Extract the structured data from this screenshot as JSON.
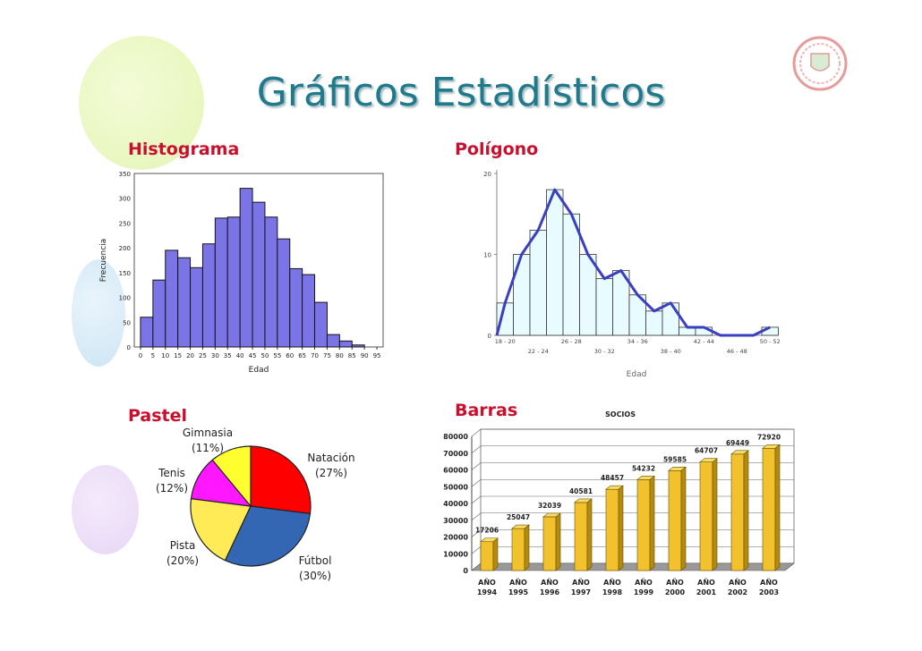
{
  "page": {
    "title": "Gráficos Estadísticos"
  },
  "sections": {
    "histogram": "Histograma",
    "polygon": "Polígono",
    "pie": "Pastel",
    "bars": "Barras"
  },
  "colors": {
    "title": "#1f7a8c",
    "section": "#c8102e",
    "hist_bar": "#7b74e6",
    "poly_line": "#3a3fc0",
    "poly_bar": "#e8fbff",
    "bar_gold": "#f2c12e"
  },
  "chart_data": [
    {
      "type": "bar",
      "ylabel": "Frecuencia",
      "xlabel": "Edad",
      "ylim": [
        0,
        350
      ],
      "yticks": [
        0,
        50,
        100,
        150,
        200,
        250,
        300,
        350
      ],
      "xticks": [
        0,
        5,
        10,
        15,
        20,
        25,
        30,
        35,
        40,
        45,
        50,
        55,
        60,
        65,
        70,
        75,
        80,
        85,
        90,
        95
      ],
      "bins_start": [
        0,
        5,
        10,
        15,
        20,
        25,
        30,
        35,
        40,
        45,
        50,
        55,
        60,
        65,
        70,
        75,
        80,
        85
      ],
      "values": [
        60,
        135,
        195,
        180,
        160,
        208,
        260,
        262,
        320,
        292,
        262,
        218,
        158,
        146,
        90,
        25,
        12,
        4
      ],
      "grid": false
    },
    {
      "type": "line",
      "xlabel": "Edad",
      "ylim": [
        0,
        20
      ],
      "yticks": [
        0,
        10,
        20
      ],
      "xtick_labels_top": [
        "18 - 20",
        "26 - 28",
        "34 - 36",
        "42 - 44",
        "50 - 52"
      ],
      "xtick_labels_bottom": [
        "22 - 24",
        "30 - 32",
        "38 - 40",
        "46 - 48"
      ],
      "bar_values": [
        4,
        10,
        13,
        18,
        15,
        10,
        7,
        8,
        5,
        3,
        4,
        1,
        1,
        0,
        0,
        0,
        1
      ],
      "polygon": [
        0,
        4,
        10,
        13,
        18,
        15,
        10,
        7,
        8,
        5,
        3,
        4,
        1,
        1,
        0,
        0,
        0,
        1
      ]
    },
    {
      "type": "pie",
      "slices": [
        {
          "label": "Natación",
          "pct_label": "(27%)",
          "value": 27,
          "color": "#ff0000"
        },
        {
          "label": "Fútbol",
          "pct_label": "(30%)",
          "value": 30,
          "color": "#3366b3"
        },
        {
          "label": "Pista",
          "pct_label": "(20%)",
          "value": 20,
          "color": "#ffeb55"
        },
        {
          "label": "Tenis",
          "pct_label": "(12%)",
          "value": 12,
          "color": "#ff18ff"
        },
        {
          "label": "Gimnasia",
          "pct_label": "(11%)",
          "value": 11,
          "color": "#ffff30"
        }
      ]
    },
    {
      "type": "bar",
      "title": "SOCIOS",
      "ylim": [
        0,
        80000
      ],
      "yticks": [
        0,
        10000,
        20000,
        30000,
        40000,
        50000,
        60000,
        70000,
        80000
      ],
      "categories": [
        [
          "AÑO",
          "1994"
        ],
        [
          "AÑO",
          "1995"
        ],
        [
          "AÑO",
          "1996"
        ],
        [
          "AÑO",
          "1997"
        ],
        [
          "AÑO",
          "1998"
        ],
        [
          "AÑO",
          "1999"
        ],
        [
          "AÑO",
          "2000"
        ],
        [
          "AÑO",
          "2001"
        ],
        [
          "AÑO",
          "2002"
        ],
        [
          "AÑO",
          "2003"
        ]
      ],
      "values": [
        17206,
        25047,
        32039,
        40581,
        48457,
        54232,
        59585,
        64707,
        69449,
        72920
      ],
      "grid": true
    }
  ]
}
